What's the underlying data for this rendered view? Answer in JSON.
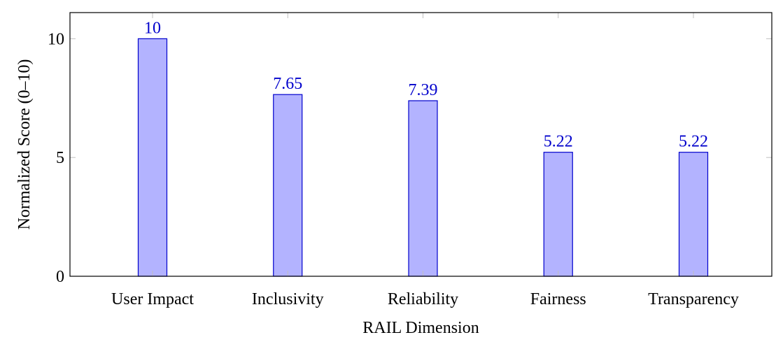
{
  "chart_data": {
    "type": "bar",
    "title": "",
    "xlabel": "RAIL Dimension",
    "ylabel": "Normalized Score (0–10)",
    "categories": [
      "User Impact",
      "Inclusivity",
      "Reliability",
      "Fairness",
      "Transparency"
    ],
    "values": [
      10,
      7.65,
      7.39,
      5.22,
      5.22
    ],
    "value_labels": [
      "10",
      "7.65",
      "7.39",
      "5.22",
      "5.22"
    ],
    "ylim": [
      0,
      11.1
    ],
    "yticks": [
      0,
      5,
      10
    ],
    "ytick_labels": [
      "0",
      "5",
      "10"
    ],
    "grid": false,
    "legend": null
  },
  "colors": {
    "bar_fill": "#b3b3ff",
    "bar_stroke": "#0000cc",
    "value_label": "#0000cc",
    "axis": "#000000",
    "tick": "#bfbfbf"
  }
}
